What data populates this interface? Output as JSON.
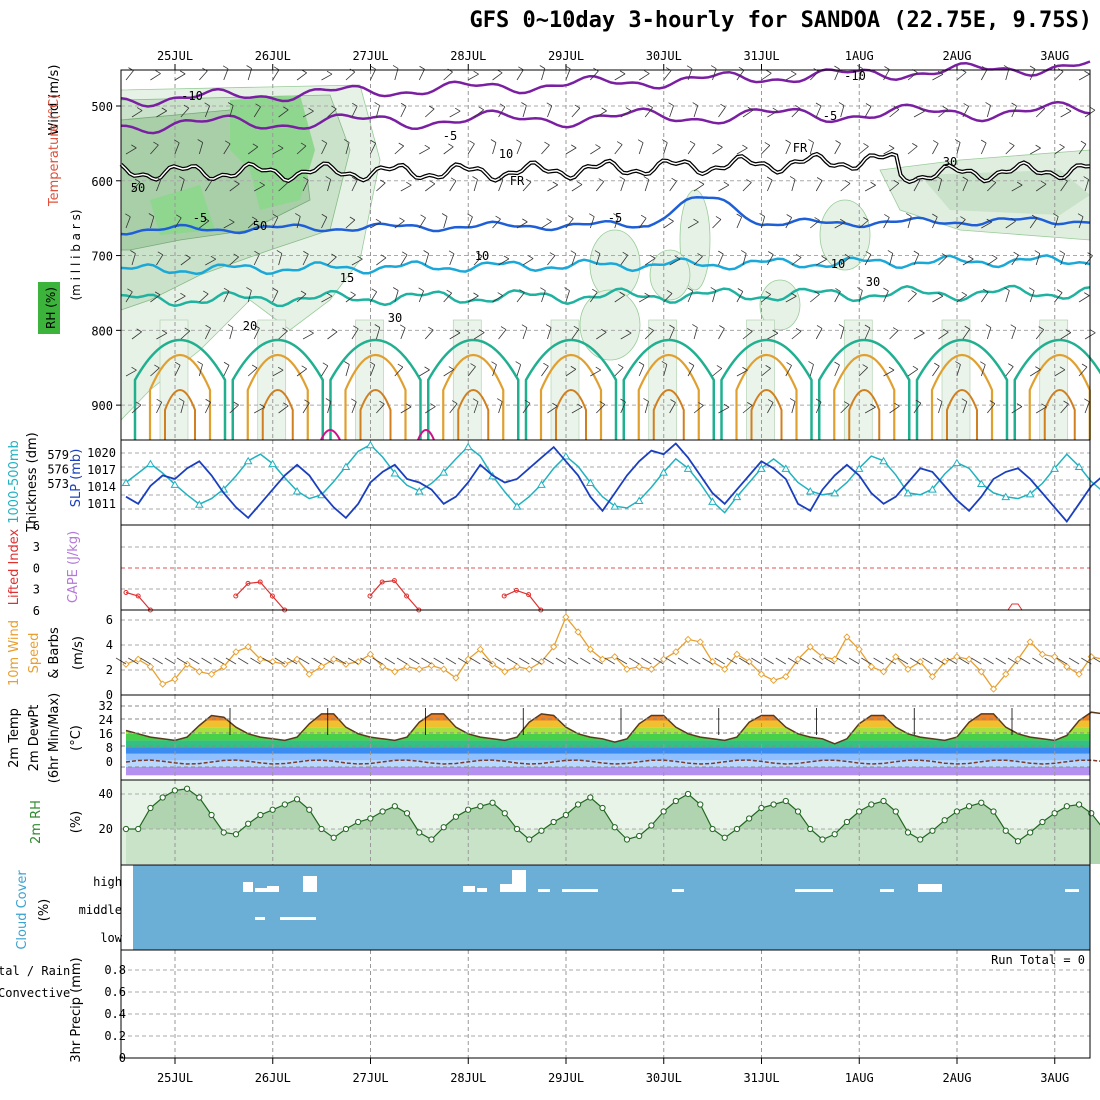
{
  "title": "GFS 0~10day 3-hourly for SANDOA (22.75E, 9.75S)",
  "date_labels": [
    "25JUL",
    "26JUL",
    "27JUL",
    "28JUL",
    "29JUL",
    "30JUL",
    "31JUL",
    "1AUG",
    "2AUG",
    "3AUG"
  ],
  "colors": {
    "rh_fill": "#8fd68f",
    "temp_cold": "#7b1fa2",
    "temp_mid": "#1e5fd8",
    "temp_warm": "#1aa8d8",
    "thickness": "#20b2c0",
    "slp": "#1a3fbf",
    "li": "#e03030",
    "wind": "#e8a030",
    "rh2m": "#2e8b2e",
    "cloud_bg": "#6baed6",
    "precip": "#2e8b2e"
  },
  "panels": {
    "upper": {
      "ylabel_wind": "Wind (m/s)",
      "ylabel_temp": "Temperature (°C)",
      "ylabel_rh": "RH (%)",
      "ylabel_p": "(m i l l i b a r s)",
      "yticks": [
        "500",
        "600",
        "700",
        "800",
        "900"
      ],
      "contour_labels": [
        {
          "text": "-10"
        },
        {
          "text": "-10"
        },
        {
          "text": "-5"
        },
        {
          "text": "-5"
        },
        {
          "text": "FR"
        },
        {
          "text": "FR"
        },
        {
          "text": "-5"
        },
        {
          "text": "-5"
        },
        {
          "text": "10"
        },
        {
          "text": "10"
        },
        {
          "text": "15"
        },
        {
          "text": "20"
        },
        {
          "text": "10"
        },
        {
          "text": "30"
        },
        {
          "text": "30"
        },
        {
          "text": "30"
        },
        {
          "text": "50"
        },
        {
          "text": "50"
        }
      ]
    },
    "thick": {
      "ylabel1": "1000-500mb",
      "ylabel2": "Thickness (dm)",
      "ylabel3": "SLP (mb)",
      "left_ticks": [
        "579",
        "576",
        "573"
      ],
      "right_ticks": [
        "1020",
        "1017",
        "1014",
        "1011"
      ]
    },
    "li": {
      "ylabel1": "Lifted Index",
      "ylabel2": "CAPE (J/kg)",
      "ticks": [
        "6",
        "3",
        "0",
        "3",
        "6"
      ]
    },
    "wind": {
      "ylabel1": "10m Wind",
      "ylabel2": "Speed",
      "ylabel3": "& Barbs",
      "ylabel4": "(m/s)",
      "ticks": [
        "6",
        "4",
        "2",
        "0"
      ]
    },
    "temp": {
      "ylabel1": "2m Temp",
      "ylabel2": "2m DewPt",
      "ylabel3": "(6hr Min/Max)",
      "ylabel4": "(°C)",
      "ticks": [
        "32",
        "24",
        "16",
        "8",
        "0"
      ]
    },
    "rh": {
      "ylabel1": "2m RH",
      "ylabel2": "(%)",
      "ticks": [
        "40",
        "20"
      ]
    },
    "cloud": {
      "ylabel1": "Cloud Cover",
      "ylabel2": "(%)",
      "levels": [
        "high",
        "middle",
        "low"
      ]
    },
    "precip": {
      "ylabel1": "tal / Rain",
      "ylabel2": "Convective",
      "ylabel3": "3hr Precip (mm)",
      "ticks": [
        "0.8",
        "0.6",
        "0.4",
        "0.2",
        "0"
      ],
      "run_total": "Run Total = 0"
    }
  },
  "chart_data": [
    {
      "type": "line",
      "name": "1000-500mb Thickness (dm)",
      "x_step_hours": 3,
      "ylim": [
        571,
        580
      ],
      "values": [
        575.5,
        576.5,
        577.5,
        576.5,
        575.3,
        574.2,
        573.2,
        573.8,
        574.8,
        576.2,
        577.8,
        578.5,
        577.5,
        576,
        574.6,
        573.8,
        574.2,
        575.6,
        577.2,
        578.8,
        579.5,
        578.2,
        576.5,
        575.2,
        574.6,
        575.4,
        576.6,
        578,
        579.3,
        578.3,
        576.2,
        574.5,
        573,
        574,
        575.3,
        577,
        578.3,
        577.2,
        575.5,
        574,
        573,
        572.8,
        573.6,
        575,
        576.6,
        578,
        577,
        575.4,
        573.5,
        572.3,
        574,
        575.5,
        577,
        578,
        577,
        575.5,
        574.6,
        574.2,
        574.4,
        575.5,
        577,
        578.3,
        577.8,
        576.3,
        574.4,
        574.2,
        574.8,
        576.4,
        577.6,
        577,
        575.4,
        574.4,
        574,
        573.8,
        574.3,
        575.4,
        577,
        578.5,
        577.2,
        575.6,
        574.5,
        573.8,
        573.8,
        574.3
      ]
    },
    {
      "type": "line",
      "name": "SLP (mb)",
      "ylim": [
        1009,
        1021
      ],
      "values": [
        1013,
        1012,
        1014.5,
        1016,
        1015.5,
        1017,
        1018,
        1016,
        1013.5,
        1011.5,
        1010,
        1012,
        1014,
        1016,
        1017.5,
        1016,
        1013.5,
        1011.5,
        1010,
        1012,
        1015,
        1016.5,
        1017.5,
        1015.5,
        1015,
        1014,
        1012,
        1013,
        1015,
        1017.5,
        1016,
        1015,
        1015.5,
        1017,
        1018.5,
        1020,
        1018,
        1016,
        1013,
        1011,
        1013.5,
        1016,
        1018,
        1019.5,
        1019,
        1020.5,
        1018.5,
        1016,
        1013.5,
        1012,
        1014,
        1016,
        1018,
        1017,
        1015.5,
        1012,
        1011,
        1014,
        1016,
        1017.5,
        1016,
        1013.5,
        1012,
        1013,
        1015,
        1017,
        1016.5,
        1014.5,
        1012.5,
        1011,
        1013,
        1015.5,
        1016.5,
        1017,
        1015.5,
        1013.5,
        1011.5,
        1009.5,
        1012,
        1014.5,
        1016,
        1015,
        1015.5,
        1016.5
      ]
    },
    {
      "type": "line",
      "name": "10m Wind Speed (m/s)",
      "ylim": [
        0,
        7
      ],
      "values": [
        2.4,
        2.8,
        2.2,
        0.8,
        1.2,
        2.4,
        1.8,
        1.6,
        2.2,
        3.4,
        3.8,
        2.8,
        2.6,
        2.4,
        2.8,
        1.6,
        2.2,
        2.8,
        2.4,
        2.6,
        3.2,
        2.2,
        1.8,
        2.2,
        2.0,
        2.3,
        2.0,
        1.3,
        2.8,
        3.6,
        2.4,
        1.8,
        2.2,
        2.0,
        2.6,
        3.8,
        6.2,
        5.0,
        3.6,
        2.8,
        3.0,
        2.0,
        2.2,
        2.0,
        2.8,
        3.4,
        4.4,
        4.2,
        2.6,
        2.0,
        3.2,
        2.6,
        1.6,
        1.1,
        1.4,
        2.8,
        3.8,
        3.0,
        2.8,
        4.6,
        3.6,
        2.2,
        1.8,
        3.0,
        2.0,
        2.6,
        1.4,
        2.6,
        3.0,
        2.8,
        1.8,
        0.4,
        1.6,
        2.8,
        4.2,
        3.2,
        3.0,
        2.2,
        1.6,
        3.0,
        2.8,
        2.8,
        1.6,
        2.0
      ]
    },
    {
      "type": "area",
      "name": "2m RH (%)",
      "ylim": [
        0,
        48
      ],
      "values": [
        20,
        20,
        32,
        38,
        42,
        43,
        38,
        28,
        18,
        17,
        23,
        28,
        31,
        34,
        37,
        31,
        20,
        15,
        20,
        24,
        26,
        30,
        33,
        29,
        18,
        14,
        21,
        27,
        31,
        33,
        35,
        29,
        20,
        14,
        19,
        24,
        28,
        34,
        38,
        32,
        21,
        14,
        16,
        22,
        30,
        36,
        40,
        34,
        20,
        15,
        20,
        26,
        32,
        34,
        36,
        30,
        20,
        14,
        17,
        24,
        30,
        34,
        36,
        30,
        18,
        14,
        19,
        25,
        30,
        33,
        35,
        30,
        19,
        13,
        18,
        24,
        29,
        33,
        34,
        29,
        20,
        17,
        28,
        32,
        30
      ]
    },
    {
      "type": "line",
      "name": "2m Temp (°C)",
      "ylim": [
        -5,
        35
      ],
      "values": [
        22,
        20,
        18,
        17,
        16,
        18,
        25,
        31,
        30,
        24,
        20,
        18,
        17,
        16,
        18,
        26,
        32,
        32,
        24,
        20,
        18,
        17,
        16,
        18,
        27,
        32,
        32,
        24,
        20,
        18,
        17,
        16,
        18,
        27,
        32,
        31,
        24,
        20,
        18,
        17,
        15,
        17,
        26,
        31,
        31,
        24,
        20,
        18,
        17,
        16,
        18,
        27,
        31,
        31,
        24,
        20,
        18,
        17,
        14,
        17,
        26,
        31,
        31,
        24,
        20,
        18,
        17,
        16,
        18,
        27,
        32,
        32,
        24,
        20,
        18,
        17,
        16,
        19,
        28,
        33,
        32,
        24,
        20,
        18,
        20
      ]
    },
    {
      "type": "line",
      "name": "Lifted Index",
      "ylim": [
        -6,
        6
      ],
      "values": [
        3.5,
        4,
        6,
        null,
        null,
        null,
        null,
        null,
        null,
        4,
        2.2,
        2,
        4,
        6,
        null,
        null,
        null,
        null,
        null,
        null,
        4,
        2,
        1.8,
        4,
        6,
        null,
        null,
        null,
        null,
        null,
        null,
        4,
        3.2,
        3.8,
        6
      ]
    }
  ]
}
